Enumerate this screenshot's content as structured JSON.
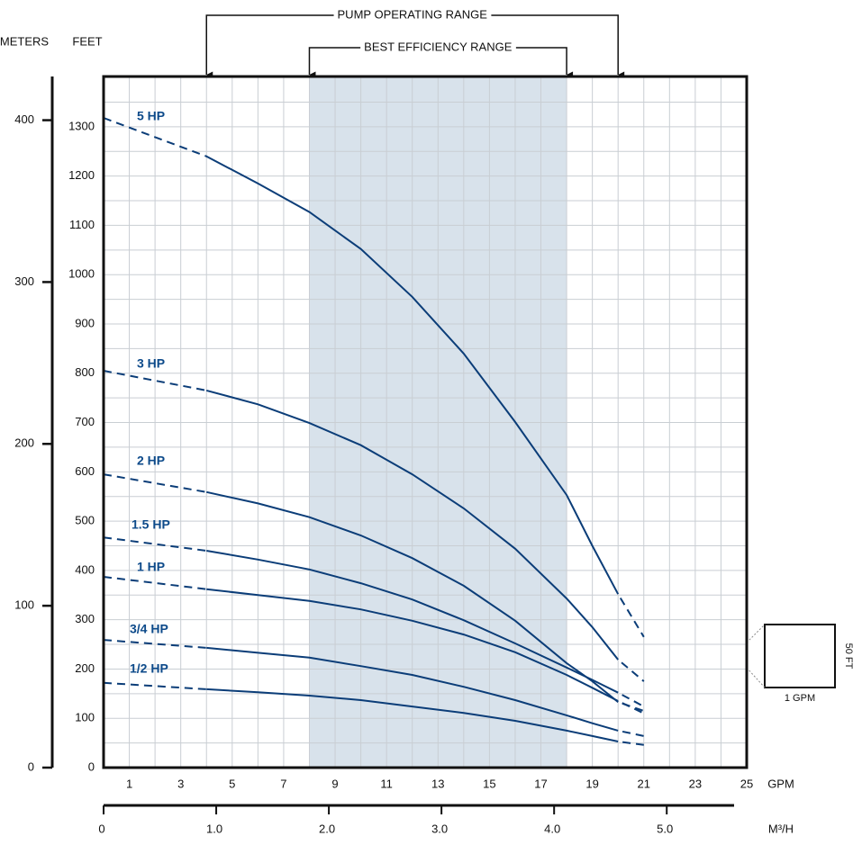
{
  "chart_data": {
    "type": "line",
    "x_label": "GPM",
    "x2_label": "M³/H",
    "y_label": "FEET",
    "y2_label": "METERS",
    "x": [
      0,
      4,
      6,
      8,
      10,
      12,
      14,
      16,
      18,
      19,
      20,
      21
    ],
    "xlim": [
      0,
      25
    ],
    "xticks": [
      1,
      3,
      5,
      7,
      9,
      11,
      13,
      15,
      17,
      19,
      21,
      23,
      25
    ],
    "x_minor_step": 1,
    "x2lim": [
      0,
      5.71
    ],
    "x2ticks": [
      0,
      {
        "value": 1,
        "label": "1.0"
      },
      {
        "value": 2,
        "label": "2.0"
      },
      {
        "value": 3,
        "label": "3.0"
      },
      {
        "value": 4,
        "label": "4.0"
      },
      {
        "value": 5,
        "label": "5.0"
      }
    ],
    "ylim": [
      0,
      1402
    ],
    "yticks": [
      0,
      100,
      200,
      300,
      400,
      500,
      600,
      700,
      800,
      900,
      1000,
      1100,
      1200,
      1300
    ],
    "y_minor_step": 50,
    "y2lim": [
      0,
      427
    ],
    "y2ticks": [
      0,
      100,
      200,
      300,
      400
    ],
    "grid": true,
    "series": [
      {
        "name": "5 HP",
        "color": "#0b3d78",
        "values": [
          1318,
          1240,
          1185,
          1127,
          1052,
          955,
          840,
          701,
          553,
          450,
          352,
          265
        ]
      },
      {
        "name": "3 HP",
        "color": "#0b3d78",
        "values": [
          805,
          765,
          737,
          699,
          654,
          595,
          526,
          444,
          343,
          285,
          219,
          175
        ]
      },
      {
        "name": "2 HP",
        "color": "#0b3d78",
        "values": [
          595,
          559,
          536,
          508,
          471,
          425,
          369,
          298,
          212,
          175,
          133,
          115
        ]
      },
      {
        "name": "1.5 HP",
        "color": "#0b3d78",
        "values": [
          467,
          440,
          422,
          402,
          374,
          341,
          299,
          252,
          203,
          178,
          152,
          124
        ]
      },
      {
        "name": "1 HP",
        "color": "#0b3d78",
        "values": [
          387,
          362,
          350,
          338,
          321,
          298,
          270,
          234,
          188,
          162,
          135,
          110
        ]
      },
      {
        "name": "3/4 HP",
        "color": "#0b3d78",
        "values": [
          259,
          243,
          233,
          223,
          206,
          188,
          164,
          137,
          106,
          90,
          75,
          64
        ]
      },
      {
        "name": "1/2 HP",
        "color": "#0b3d78",
        "values": [
          172,
          159,
          153,
          146,
          137,
          124,
          111,
          95,
          75,
          64,
          53,
          46
        ]
      }
    ],
    "ranges": [
      {
        "label": "PUMP OPERATING RANGE",
        "x": [
          4,
          20
        ]
      },
      {
        "label": "BEST EFFICIENCY RANGE",
        "x": [
          8,
          18
        ],
        "color": "#d8e2eb"
      }
    ],
    "scale_box": {
      "x_label": "1 GPM",
      "y_label": "50 FT"
    }
  }
}
